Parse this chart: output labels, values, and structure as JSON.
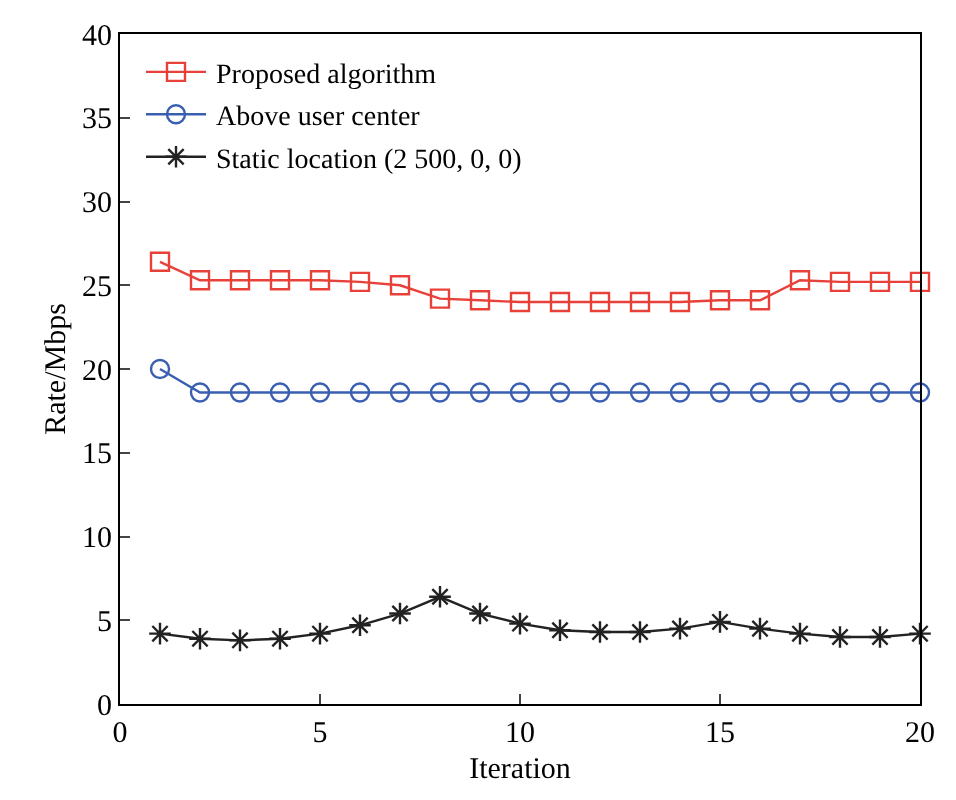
{
  "chart_data": {
    "type": "line",
    "xlabel": "Iteration",
    "ylabel": "Rate/Mbps",
    "x": [
      1,
      2,
      3,
      4,
      5,
      6,
      7,
      8,
      9,
      10,
      11,
      12,
      13,
      14,
      15,
      16,
      17,
      18,
      19,
      20
    ],
    "series": [
      {
        "name": "Proposed algorithm",
        "color": "#e8413a",
        "marker": "square",
        "values": [
          26.4,
          25.3,
          25.3,
          25.3,
          25.3,
          25.2,
          25.0,
          24.2,
          24.1,
          24.0,
          24.0,
          24.0,
          24.0,
          24.0,
          24.1,
          24.1,
          25.3,
          25.2,
          25.2,
          25.2
        ]
      },
      {
        "name": "Above user center",
        "color": "#3a5fb0",
        "marker": "circle",
        "values": [
          20.0,
          18.6,
          18.6,
          18.6,
          18.6,
          18.6,
          18.6,
          18.6,
          18.6,
          18.6,
          18.6,
          18.6,
          18.6,
          18.6,
          18.6,
          18.6,
          18.6,
          18.6,
          18.6,
          18.6
        ]
      },
      {
        "name": "Static location (2 500, 0, 0)",
        "color": "#222222",
        "marker": "cross",
        "values": [
          4.2,
          3.9,
          3.8,
          3.9,
          4.2,
          4.7,
          5.4,
          6.4,
          5.4,
          4.8,
          4.4,
          4.3,
          4.3,
          4.5,
          4.9,
          4.5,
          4.2,
          4.0,
          4.0,
          4.2
        ]
      }
    ],
    "xlim": [
      0,
      20
    ],
    "xticks": [
      0,
      5,
      10,
      15,
      20
    ],
    "ylim": [
      0,
      40
    ],
    "yticks": [
      0,
      5,
      10,
      15,
      20,
      25,
      30,
      35,
      40
    ],
    "legend": "top left",
    "line_style": "solid"
  }
}
